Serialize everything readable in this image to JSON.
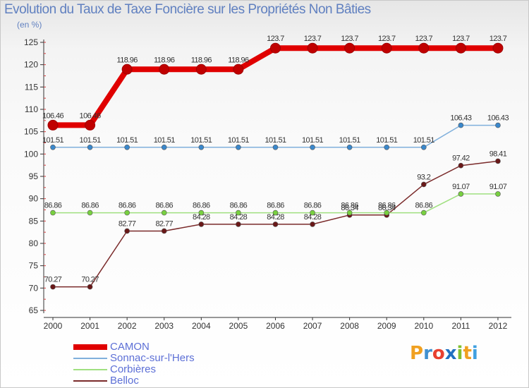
{
  "title": "Evolution du Taux de Taxe Foncière sur les Propriétés Non Bâties",
  "unit": "(en %)",
  "logo": {
    "letters": [
      "P",
      "r",
      "o",
      "x",
      "i",
      "t",
      "i"
    ],
    "colors": [
      "#f0a020",
      "#4090d0",
      "#e84030",
      "#2070c0",
      "#80c030",
      "#f0a020",
      "#40a0e0"
    ]
  },
  "chart_data": {
    "type": "line",
    "x": [
      "2000",
      "2001",
      "2002",
      "2003",
      "2004",
      "2005",
      "2006",
      "2007",
      "2008",
      "2009",
      "2010",
      "2011",
      "2012"
    ],
    "ylim": [
      65,
      125
    ],
    "yticks": [
      65,
      70,
      75,
      80,
      85,
      90,
      95,
      100,
      105,
      110,
      115,
      120,
      125
    ],
    "grid": false,
    "series": [
      {
        "name": "CAMON",
        "color": "#e00000",
        "markerColor": "#c00000",
        "values": [
          106.46,
          106.46,
          118.96,
          118.96,
          118.96,
          118.96,
          123.7,
          123.7,
          123.7,
          123.7,
          123.7,
          123.7,
          123.7
        ],
        "labels": [
          "106.46",
          "106.46",
          "118.96",
          "118.96",
          "118.96",
          "118.96",
          "123.7",
          "123.7",
          "123.7",
          "123.7",
          "123.7",
          "123.7",
          "123.7"
        ]
      },
      {
        "name": "Sonnac-sur-l'Hers",
        "color": "#80b0dc",
        "markerColor": "#3a88cc",
        "values": [
          101.51,
          101.51,
          101.51,
          101.51,
          101.51,
          101.51,
          101.51,
          101.51,
          101.51,
          101.51,
          101.51,
          106.43,
          106.43
        ],
        "labels": [
          "101.51",
          "101.51",
          "101.51",
          "101.51",
          "101.51",
          "101.51",
          "101.51",
          "101.51",
          "101.51",
          "101.51",
          "101.51",
          "106.43",
          "106.43"
        ]
      },
      {
        "name": "Corbières",
        "color": "#a0e080",
        "markerColor": "#78d040",
        "values": [
          86.86,
          86.86,
          86.86,
          86.86,
          86.86,
          86.86,
          86.86,
          86.86,
          86.86,
          86.86,
          86.86,
          91.07,
          91.07
        ],
        "labels": [
          "86.86",
          "86.86",
          "86.86",
          "86.86",
          "86.86",
          "86.86",
          "86.86",
          "86.86",
          "86.86",
          "86.86",
          "86.86",
          "91.07",
          "91.07"
        ]
      },
      {
        "name": "Belloc",
        "color": "#7a2a2a",
        "markerColor": "#6a1818",
        "values": [
          70.27,
          70.27,
          82.77,
          82.77,
          84.28,
          84.28,
          84.28,
          84.28,
          86.34,
          86.34,
          93.2,
          97.42,
          98.41
        ],
        "labels": [
          "70.27",
          "70.27",
          "82.77",
          "82.77",
          "84.28",
          "84.28",
          "84.28",
          "84.28",
          "86.34",
          "86.34",
          "93.2",
          "97.42",
          "98.41"
        ]
      }
    ]
  }
}
